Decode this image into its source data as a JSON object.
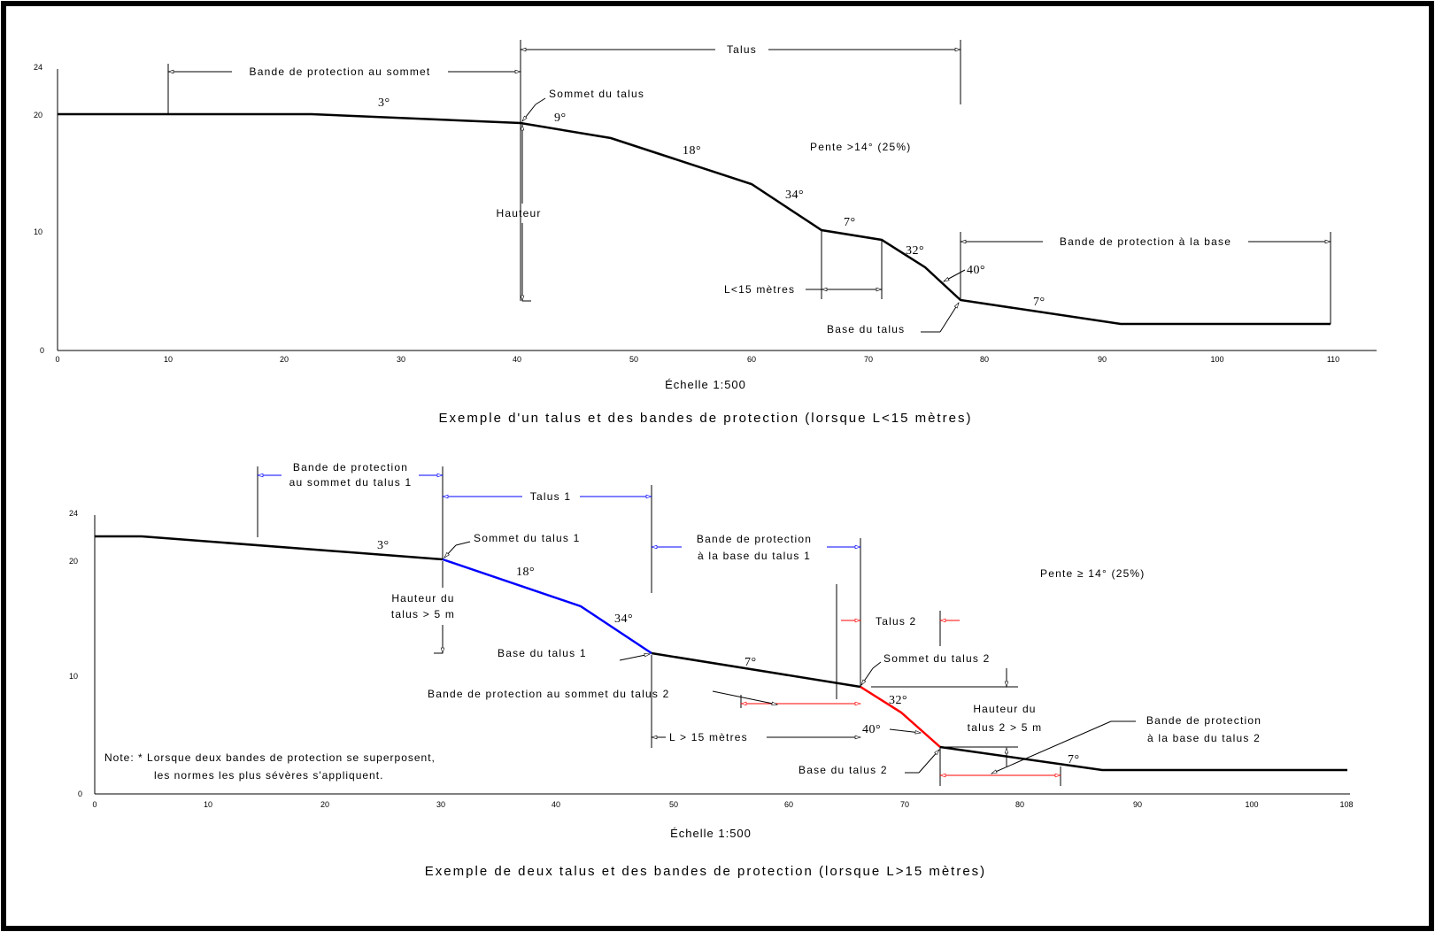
{
  "diagram1": {
    "caption": "Exemple d'un talus et des bandes de protection (lorsque L<15 mètres)",
    "scale": "Échelle 1:500",
    "x_ticks": [
      "0",
      "10",
      "20",
      "30",
      "40",
      "50",
      "60",
      "70",
      "80",
      "90",
      "100",
      "110"
    ],
    "y_ticks": [
      "0",
      "10",
      "20",
      "24"
    ],
    "labels": {
      "talus": "Talus",
      "bande_sommet": "Bande de protection au sommet",
      "sommet": "Sommet du talus",
      "hauteur": "Hauteur",
      "pente": "Pente  >14°  (25%)",
      "bande_base": "Bande de protection à la base",
      "l15": "L<15 mètres",
      "base": "Base du talus"
    },
    "angles": [
      "3°",
      "9°",
      "18°",
      "34°",
      "7°",
      "32°",
      "40°",
      "7°"
    ]
  },
  "diagram2": {
    "caption": "Exemple de deux talus et des bandes de protection (lorsque L>15 mètres)",
    "scale": "Échelle 1:500",
    "x_ticks": [
      "0",
      "10",
      "20",
      "30",
      "40",
      "50",
      "60",
      "70",
      "80",
      "90",
      "100",
      "108"
    ],
    "y_ticks": [
      "0",
      "10",
      "20",
      "24"
    ],
    "labels": {
      "bande_sommet1_a": "Bande de protection",
      "bande_sommet1_b": "au sommet du talus 1",
      "talus1": "Talus 1",
      "sommet1": "Sommet du talus 1",
      "bande_base1_a": "Bande de protection",
      "bande_base1_b": "à la base du talus 1",
      "pente": "Pente  ≥ 14°  (25%)",
      "hauteur1_a": "Hauteur du",
      "hauteur1_b": "talus > 5 m",
      "talus2": "Talus 2",
      "base1": "Base du talus 1",
      "sommet2": "Sommet du talus 2",
      "bande_sommet2": "Bande de protection au sommet du talus 2",
      "hauteur2_a": "Hauteur du",
      "hauteur2_b": "talus 2 > 5 m",
      "bande_base2_a": "Bande de protection",
      "bande_base2_b": "à la base du talus 2",
      "l15": "L > 15 mètres",
      "base2": "Base du talus 2",
      "note_a": "Note: * Lorsque deux bandes de protection se superposent,",
      "note_b": "les normes les plus sévères s'appliquent."
    },
    "angles": [
      "3°",
      "18°",
      "34°",
      "7°",
      "32°",
      "40°",
      "7°"
    ]
  },
  "colors": {
    "frame": "#000000",
    "talus1": "#0000ff",
    "talus2": "#ff0000"
  }
}
